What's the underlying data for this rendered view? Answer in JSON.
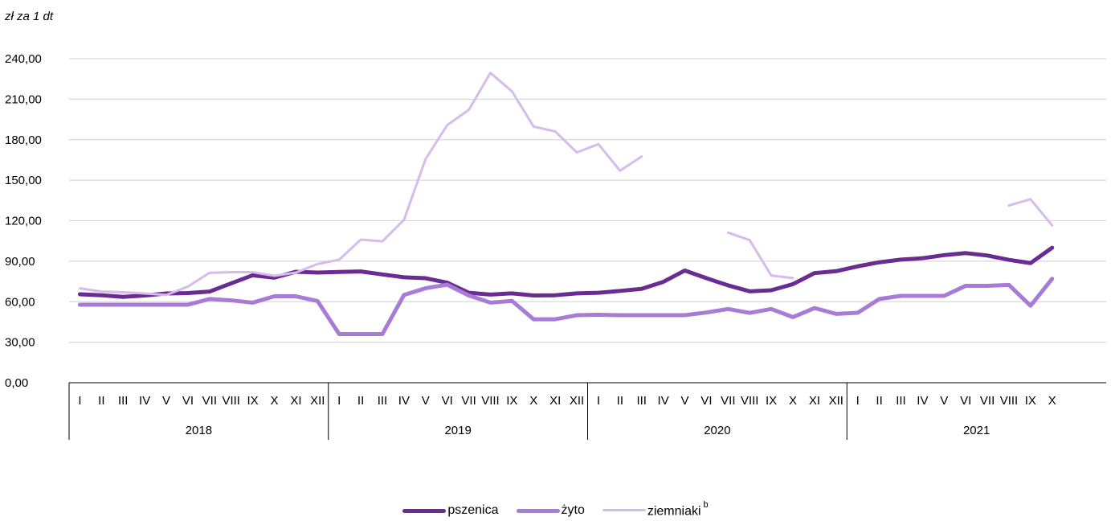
{
  "unit_label": "zł za 1 dt",
  "chart_data": {
    "type": "line",
    "ylabel": "zł za 1 dt",
    "ylim": [
      0,
      240
    ],
    "yticks": [
      0,
      30,
      60,
      90,
      120,
      150,
      180,
      210,
      240
    ],
    "ytick_labels": [
      "0,00",
      "30,00",
      "60,00",
      "90,00",
      "120,00",
      "150,00",
      "180,00",
      "210,00",
      "240,00"
    ],
    "grid": "horizontal",
    "legend_position": "bottom",
    "years": [
      {
        "label": "2018",
        "months": [
          "I",
          "II",
          "III",
          "IV",
          "V",
          "VI",
          "VII",
          "VIII",
          "IX",
          "X",
          "XI",
          "XII"
        ]
      },
      {
        "label": "2019",
        "months": [
          "I",
          "II",
          "III",
          "IV",
          "V",
          "VI",
          "VII",
          "VIII",
          "IX",
          "X",
          "XI",
          "XII"
        ]
      },
      {
        "label": "2020",
        "months": [
          "I",
          "II",
          "III",
          "IV",
          "V",
          "VI",
          "VII",
          "VIII",
          "IX",
          "X",
          "XI",
          "XII"
        ]
      },
      {
        "label": "2021",
        "months": [
          "I",
          "II",
          "III",
          "IV",
          "V",
          "VI",
          "VII",
          "VIII",
          "IX",
          "X"
        ]
      }
    ],
    "series": [
      {
        "name": "pszenica",
        "color": "#6a2c91",
        "width": 5,
        "values": [
          65.5,
          64.8,
          63.6,
          64.6,
          66.1,
          66.4,
          67.5,
          73.6,
          79.6,
          77.8,
          82.2,
          81.6,
          82.0,
          82.4,
          80.2,
          78.1,
          77.4,
          74.1,
          66.6,
          65.3,
          66.2,
          64.6,
          64.8,
          66.2,
          66.6,
          68.0,
          69.5,
          74.7,
          83.1,
          77.4,
          72.1,
          67.7,
          68.5,
          73.0,
          81.2,
          82.6,
          86.2,
          89.2,
          91.2,
          92.2,
          94.5,
          96.0,
          94.2,
          91.0,
          88.6,
          100.0
        ]
      },
      {
        "name": "żyto",
        "color": "#a77bd6",
        "width": 5,
        "values": [
          57.8,
          57.8,
          57.8,
          57.8,
          57.8,
          57.8,
          62.0,
          61.0,
          59.3,
          64.0,
          64.0,
          60.5,
          36.0,
          36.0,
          36.0,
          65.0,
          70.0,
          72.6,
          64.6,
          59.3,
          60.6,
          47.0,
          47.0,
          50.0,
          50.3,
          50.0,
          50.0,
          50.0,
          50.0,
          52.0,
          54.6,
          51.7,
          54.6,
          48.6,
          55.3,
          51.0,
          51.8,
          62.0,
          64.3,
          64.3,
          64.3,
          71.8,
          71.8,
          72.4,
          57.0,
          77.0
        ]
      },
      {
        "name": "ziemniaki",
        "superscript": "b",
        "color": "#d5bceb",
        "width": 3,
        "values": [
          69.9,
          67.5,
          67.0,
          66.1,
          65.0,
          71.2,
          81.4,
          81.9,
          81.9,
          79.2,
          81.6,
          87.9,
          91.1,
          106.0,
          104.7,
          120.6,
          165.7,
          190.8,
          202.1,
          229.5,
          215.8,
          189.7,
          186.1,
          170.6,
          176.7,
          157.0,
          167.6,
          null,
          null,
          null,
          111.2,
          105.6,
          79.4,
          77.5,
          null,
          null,
          null,
          null,
          null,
          null,
          null,
          null,
          null,
          131.3,
          135.9,
          116.5
        ]
      }
    ]
  }
}
